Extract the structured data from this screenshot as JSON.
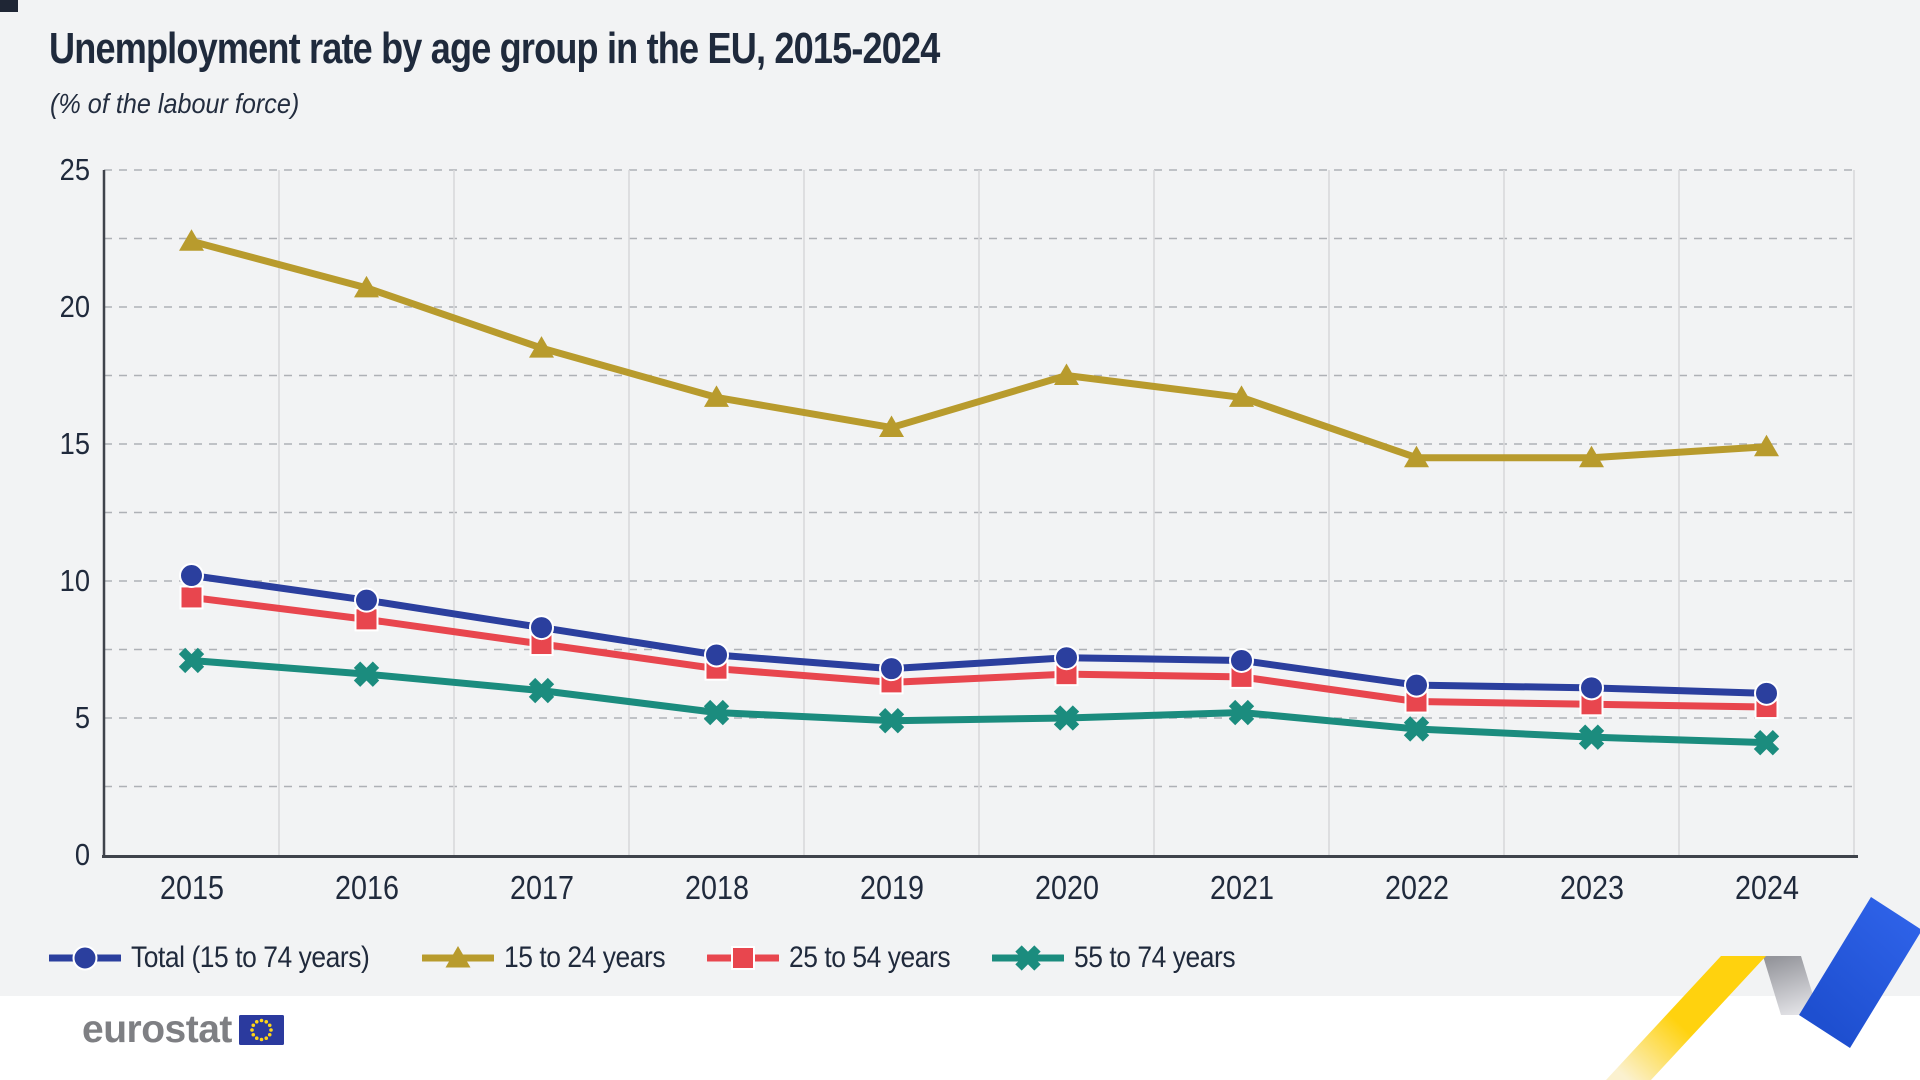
{
  "title": "Unemployment rate by age group in the EU, 2015-2024",
  "subtitle": "(% of the labour force)",
  "footer": {
    "logo_text": "eurostat"
  },
  "colors": {
    "background": "#F2F3F4",
    "footer_background": "#FFFFFF",
    "text": "#202A3C",
    "axis": "#3F434B",
    "grid_vertical": "#D8D9DB",
    "grid_dashed": "#AEB1B6",
    "marker_outline": "#FFFFFF",
    "logo_gray": "#7E7F83",
    "flag_blue": "#2B3A9E",
    "star_yellow": "#FFD617",
    "ribbon_yellow": "#FFD20E",
    "ribbon_yellow_fade": "#FBF1CF",
    "ribbon_gray_dark": "#95969C",
    "ribbon_gray_light": "#E4E4E8",
    "ribbon_blue": "#1E4FD0",
    "ribbon_blue_light": "#2E62E8",
    "corner": "#1F2635"
  },
  "chart_data": {
    "type": "line",
    "title": "Unemployment rate by age group in the EU, 2015-2024",
    "subtitle": "(% of the labour force)",
    "categories": [
      "2015",
      "2016",
      "2017",
      "2018",
      "2019",
      "2020",
      "2021",
      "2022",
      "2023",
      "2024"
    ],
    "y_ticks": [
      0,
      5,
      10,
      15,
      20,
      25
    ],
    "ylim": [
      0,
      25
    ],
    "grid": {
      "h_step": 2.5,
      "v_bands": 10,
      "horizontal_style": "dashed",
      "vertical_style": "solid"
    },
    "legend_position": "bottom",
    "series": [
      {
        "name": "Total (15 to 74 years)",
        "marker": "circle",
        "color": "#2B3F9E",
        "values": [
          10.2,
          9.3,
          8.3,
          7.3,
          6.8,
          7.2,
          7.1,
          6.2,
          6.1,
          5.9
        ]
      },
      {
        "name": "15 to 24 years",
        "marker": "triangle",
        "color": "#B89B2D",
        "values": [
          22.4,
          20.7,
          18.5,
          16.7,
          15.6,
          17.5,
          16.7,
          14.5,
          14.5,
          14.9
        ]
      },
      {
        "name": "25 to 54 years",
        "marker": "square",
        "color": "#E8464E",
        "values": [
          9.4,
          8.6,
          7.7,
          6.8,
          6.3,
          6.6,
          6.5,
          5.6,
          5.5,
          5.4
        ]
      },
      {
        "name": "55 to 74 years",
        "marker": "x",
        "color": "#1B8C7E",
        "values": [
          7.1,
          6.6,
          6.0,
          5.2,
          4.9,
          5.0,
          5.2,
          4.6,
          4.3,
          4.1
        ]
      }
    ]
  }
}
